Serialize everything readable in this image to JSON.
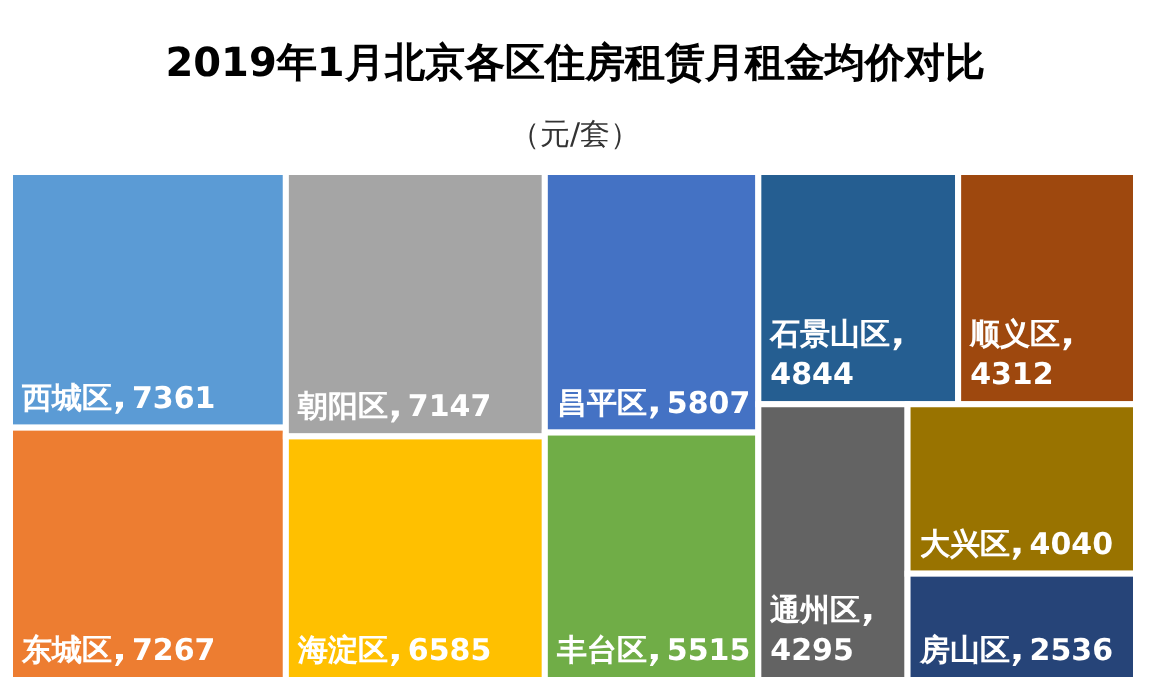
{
  "chart_data": {
    "type": "other",
    "title": "2019年1月北京各区住房租赁月租金均价对比",
    "subtitle": "（元/套）",
    "categories": [
      "西城区",
      "东城区",
      "朝阳区",
      "海淀区",
      "昌平区",
      "丰台区",
      "石景山区",
      "顺义区",
      "通州区",
      "大兴区",
      "房山区"
    ],
    "values": [
      7361,
      7267,
      7147,
      6585,
      5807,
      5515,
      4844,
      4312,
      4295,
      4040,
      2536
    ],
    "colors": [
      "#5b9bd5",
      "#ed7d31",
      "#a5a5a5",
      "#ffc000",
      "#4472c4",
      "#70ad47",
      "#255e91",
      "#9e480e",
      "#636363",
      "#997300",
      "#264478"
    ],
    "data_labels": true
  }
}
